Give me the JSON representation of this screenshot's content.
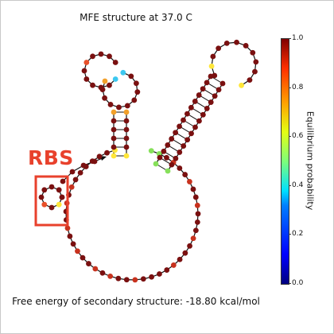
{
  "title": "MFE structure at 37.0 C",
  "footer": "Free energy of secondary structure: -18.80 kcal/mol",
  "rbs_label": "RBS",
  "colorbar": {
    "label": "Equilibrium probability",
    "ticks": [
      "1.0",
      "0.8",
      "0.6",
      "0.4",
      "0.2",
      "0.0"
    ]
  },
  "colors": {
    "dark_red": "#7a1010",
    "red": "#c8321e",
    "orange_red": "#e8502a",
    "orange": "#f2a02a",
    "yellow": "#ffe63a",
    "green": "#86e05a",
    "cyan": "#3cc8f0",
    "rbs_box": "#e8412c"
  }
}
